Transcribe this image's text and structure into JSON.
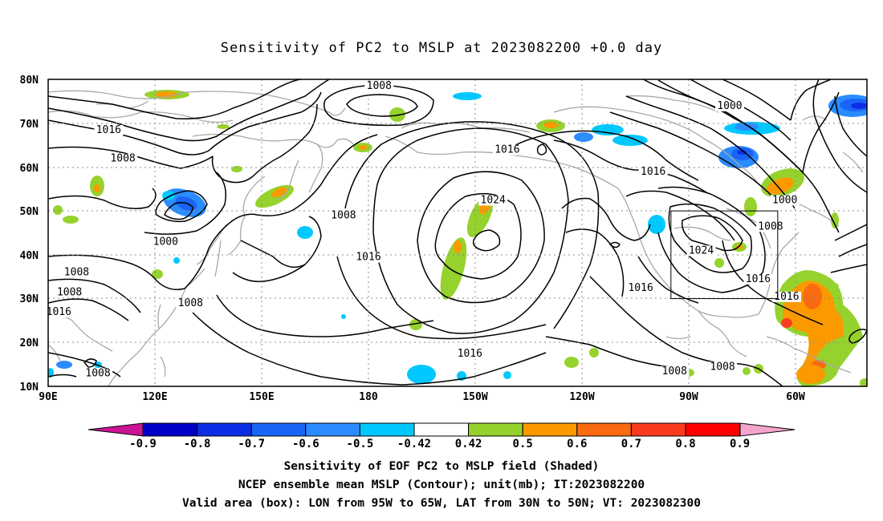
{
  "title": "Sensitivity of PC2 to MSLP at 2023082200 +0.0 day",
  "axes": {
    "lat_labels": [
      "80N",
      "70N",
      "60N",
      "50N",
      "40N",
      "30N",
      "20N",
      "10N"
    ],
    "lon_labels": [
      "90E",
      "120E",
      "150E",
      "180",
      "150W",
      "120W",
      "90W",
      "60W"
    ]
  },
  "contour_labels": [
    {
      "text": "1008",
      "lon": 183.0,
      "lat": 78.5
    },
    {
      "text": "1016",
      "lon": 107.0,
      "lat": 68.5
    },
    {
      "text": "1008",
      "lon": 111.0,
      "lat": 62.0
    },
    {
      "text": "1000",
      "lon": 281.5,
      "lat": 74.0
    },
    {
      "text": "1016",
      "lon": 219.0,
      "lat": 64.0
    },
    {
      "text": "1016",
      "lon": 260.0,
      "lat": 59.0
    },
    {
      "text": "1024",
      "lon": 215.0,
      "lat": 52.5
    },
    {
      "text": "1008",
      "lon": 173.0,
      "lat": 49.0
    },
    {
      "text": "1000",
      "lon": 297.0,
      "lat": 52.5
    },
    {
      "text": "1008",
      "lon": 293.0,
      "lat": 46.5
    },
    {
      "text": "1000",
      "lon": 123.0,
      "lat": 43.0
    },
    {
      "text": "1016",
      "lon": 180.0,
      "lat": 39.5
    },
    {
      "text": "1024",
      "lon": 273.5,
      "lat": 41.0
    },
    {
      "text": "1016",
      "lon": 289.5,
      "lat": 34.5
    },
    {
      "text": "1008",
      "lon": 98.0,
      "lat": 36.0
    },
    {
      "text": "1016",
      "lon": 256.5,
      "lat": 32.5
    },
    {
      "text": "1008",
      "lon": 96.0,
      "lat": 31.5
    },
    {
      "text": "1008",
      "lon": 130.0,
      "lat": 29.0
    },
    {
      "text": "1016",
      "lon": 297.5,
      "lat": 30.5
    },
    {
      "text": "1016",
      "lon": 93.0,
      "lat": 27.0
    },
    {
      "text": "1016",
      "lon": 208.5,
      "lat": 17.5
    },
    {
      "text": "1008",
      "lon": 266.0,
      "lat": 13.5
    },
    {
      "text": "1008",
      "lon": 279.5,
      "lat": 14.5
    },
    {
      "text": "1008",
      "lon": 104.0,
      "lat": 13.0
    }
  ],
  "valid_box": {
    "lon_min": 265,
    "lon_max": 295,
    "lat_min": 30,
    "lat_max": 50
  },
  "colorbar": {
    "labels": [
      "-0.9",
      "-0.8",
      "-0.7",
      "-0.6",
      "-0.5",
      "-0.42",
      "0.42",
      "0.5",
      "0.6",
      "0.7",
      "0.8",
      "0.9"
    ],
    "colors": [
      "#0000c8",
      "#0c2fe6",
      "#1a64f5",
      "#2b8cff",
      "#00c8ff",
      "#ffffff",
      "#96d22d",
      "#fa9a00",
      "#fa6a10",
      "#fa3c1e",
      "#ff0000"
    ],
    "low_end": "#cc1497",
    "high_end": "#f5a5cd"
  },
  "footer": {
    "line1": "Sensitivity of EOF PC2 to MSLP field (Shaded)",
    "line2": "NCEP ensemble mean MSLP (Contour); unit(mb); IT:2023082200",
    "line3": "Valid area (box): LON from 95W to 65W, LAT from 30N to 50N; VT: 2023082300"
  }
}
